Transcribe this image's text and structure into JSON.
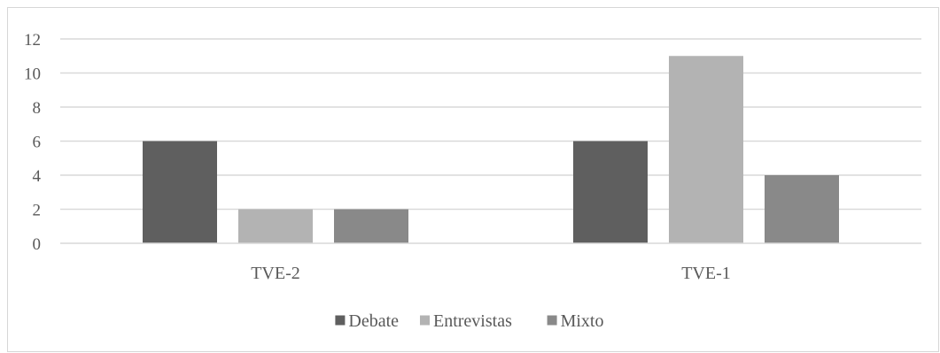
{
  "chart_data": {
    "type": "bar",
    "title": "",
    "xlabel": "",
    "ylabel": "",
    "categories": [
      "TVE-2",
      "TVE-1"
    ],
    "series": [
      {
        "name": "Debate",
        "values": [
          6,
          6
        ],
        "color": "#5f5f5f"
      },
      {
        "name": "Entrevistas",
        "values": [
          2,
          11
        ],
        "color": "#b3b3b3"
      },
      {
        "name": "Mixto",
        "values": [
          2,
          4
        ],
        "color": "#898989"
      }
    ],
    "ylim": [
      0,
      12
    ],
    "yticks": [
      "0",
      "2",
      "4",
      "6",
      "8",
      "10",
      "12"
    ],
    "grid": true,
    "legend_position": "bottom",
    "colors": {
      "grid": "#d9d9d9",
      "axis": "#d9d9d9",
      "text": "#595959",
      "border": "#d6d6d6"
    }
  }
}
